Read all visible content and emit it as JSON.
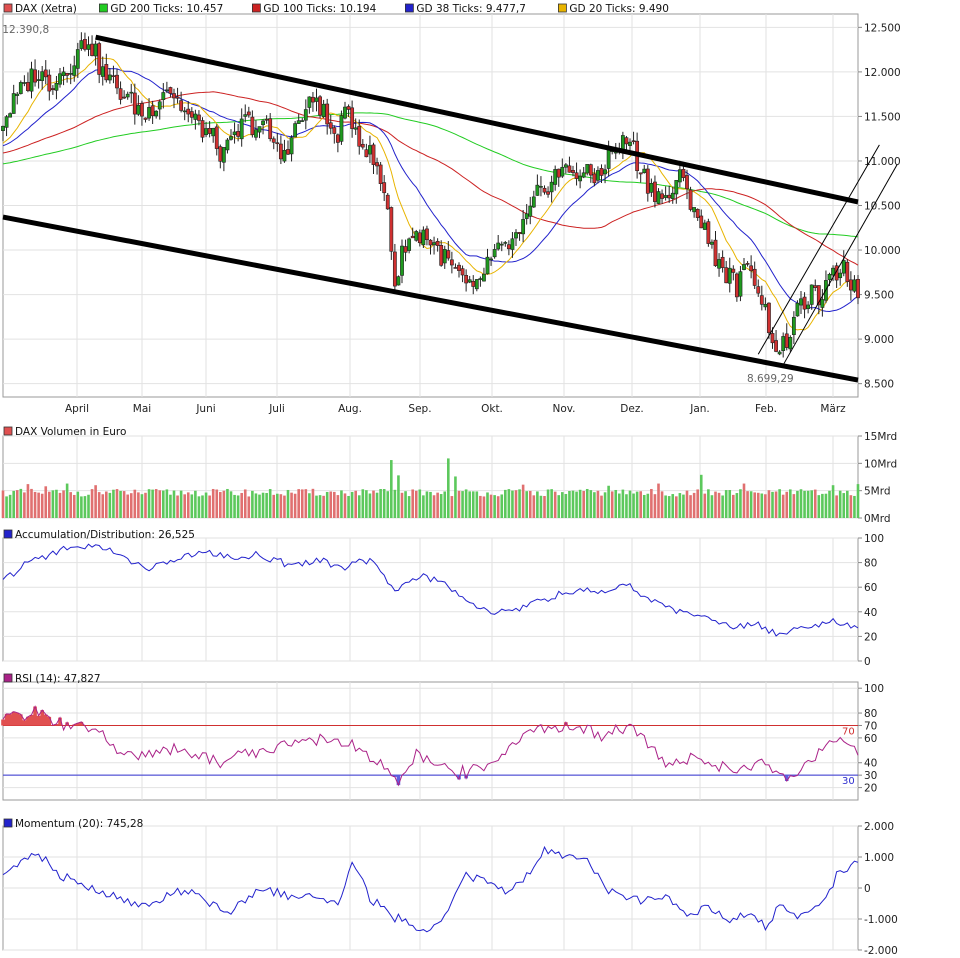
{
  "chart_data": [
    {
      "type": "candlestick",
      "legend": [
        {
          "name": "DAX (Xetra)",
          "color": "#e05050"
        },
        {
          "name": "GD 200 Ticks: 10.457",
          "color": "#22cc22"
        },
        {
          "name": "GD 100 Ticks: 10.194",
          "color": "#cc2222"
        },
        {
          "name": "GD 38 Ticks: 9.477,7",
          "color": "#2222cc"
        },
        {
          "name": "GD 20 Ticks: 9.490",
          "color": "#e8b400"
        }
      ],
      "months": [
        "April",
        "Mai",
        "Juni",
        "Juli",
        "Aug.",
        "Sep.",
        "Okt.",
        "Nov.",
        "Dez.",
        "Jan.",
        "Feb.",
        "März"
      ],
      "ylim": [
        8350,
        12650
      ],
      "y_ticks": [
        8500,
        9000,
        9500,
        10000,
        10500,
        11000,
        11500,
        12000,
        12500
      ],
      "y_tick_labels": [
        "8.500",
        "9.000",
        "9.500",
        "10.000",
        "10.500",
        "11.000",
        "11.500",
        "12.000",
        "12.500"
      ],
      "annotations": [
        {
          "text": "12.390,8",
          "x": 6,
          "y": 12390.8
        },
        {
          "text": "8.699,29",
          "x": 215,
          "y": 8699.29
        }
      ],
      "x_range": [
        0,
        240
      ],
      "close_anchors": [
        [
          0,
          11450
        ],
        [
          4,
          11720
        ],
        [
          9,
          12000
        ],
        [
          13,
          11880
        ],
        [
          18,
          12050
        ],
        [
          24,
          12390
        ],
        [
          28,
          11980
        ],
        [
          35,
          11700
        ],
        [
          40,
          11500
        ],
        [
          46,
          11850
        ],
        [
          52,
          11500
        ],
        [
          58,
          11300
        ],
        [
          62,
          11050
        ],
        [
          68,
          11450
        ],
        [
          74,
          11350
        ],
        [
          78,
          11050
        ],
        [
          84,
          11500
        ],
        [
          88,
          11720
        ],
        [
          93,
          11250
        ],
        [
          97,
          11550
        ],
        [
          101,
          11200
        ],
        [
          104,
          11000
        ],
        [
          108,
          10500
        ],
        [
          110,
          9600
        ],
        [
          113,
          10100
        ],
        [
          118,
          10200
        ],
        [
          123,
          9950
        ],
        [
          128,
          9700
        ],
        [
          132,
          9500
        ],
        [
          136,
          9850
        ],
        [
          140,
          10000
        ],
        [
          145,
          10150
        ],
        [
          150,
          10600
        ],
        [
          155,
          10850
        ],
        [
          160,
          10900
        ],
        [
          166,
          10800
        ],
        [
          171,
          11100
        ],
        [
          176,
          11250
        ],
        [
          178,
          11000
        ],
        [
          181,
          10750
        ],
        [
          186,
          10550
        ],
        [
          190,
          10800
        ],
        [
          194,
          10500
        ],
        [
          198,
          10100
        ],
        [
          202,
          9800
        ],
        [
          206,
          9600
        ],
        [
          210,
          9850
        ],
        [
          214,
          9300
        ],
        [
          218,
          8800
        ],
        [
          222,
          9200
        ],
        [
          226,
          9500
        ],
        [
          230,
          9450
        ],
        [
          233,
          9700
        ],
        [
          236,
          9850
        ],
        [
          239,
          9550
        ]
      ],
      "trendlines": [
        {
          "from": [
            26,
            12390
          ],
          "to": [
            240,
            10540
          ]
        },
        {
          "from": [
            0,
            10370
          ],
          "to": [
            240,
            8540
          ]
        },
        {
          "from": [
            212,
            8830
          ],
          "to": [
            246,
            11180
          ]
        },
        {
          "from": [
            219,
            8710
          ],
          "to": [
            251,
            10960
          ]
        }
      ]
    },
    {
      "type": "bar",
      "legend": [
        {
          "name": "DAX Volumen in Euro",
          "color": "#e05050"
        }
      ],
      "ylim": [
        0,
        15
      ],
      "y_ticks": [
        0,
        5,
        10,
        15
      ],
      "y_tick_labels": [
        "0Mrd",
        "5Mrd",
        "10Mrd",
        "15Mrd"
      ],
      "base_level": 4.5,
      "spikes": [
        [
          7,
          6.2
        ],
        [
          12,
          5.8
        ],
        [
          18,
          6.3
        ],
        [
          26,
          6.0
        ],
        [
          109,
          10.6
        ],
        [
          111,
          7.8
        ],
        [
          125,
          10.9
        ],
        [
          127,
          7.6
        ],
        [
          146,
          6.1
        ],
        [
          170,
          5.9
        ],
        [
          184,
          6.3
        ],
        [
          196,
          7.9
        ],
        [
          208,
          6.3
        ],
        [
          233,
          6.0
        ],
        [
          240,
          6.2
        ]
      ]
    },
    {
      "type": "line",
      "legend": [
        {
          "name": "Accumulation/Distribution: 26,525",
          "color": "#2222cc"
        }
      ],
      "ylim": [
        0,
        100
      ],
      "y_ticks": [
        0,
        20,
        40,
        60,
        80,
        100
      ],
      "y_tick_labels": [
        "0",
        "20",
        "40",
        "60",
        "80",
        "100"
      ],
      "anchors": [
        [
          0,
          65
        ],
        [
          8,
          82
        ],
        [
          16,
          90
        ],
        [
          24,
          94
        ],
        [
          32,
          88
        ],
        [
          40,
          75
        ],
        [
          48,
          82
        ],
        [
          56,
          89
        ],
        [
          64,
          84
        ],
        [
          72,
          86
        ],
        [
          80,
          79
        ],
        [
          88,
          82
        ],
        [
          96,
          77
        ],
        [
          104,
          82
        ],
        [
          110,
          58
        ],
        [
          118,
          70
        ],
        [
          124,
          63
        ],
        [
          130,
          50
        ],
        [
          136,
          40
        ],
        [
          144,
          42
        ],
        [
          152,
          50
        ],
        [
          160,
          56
        ],
        [
          168,
          56
        ],
        [
          176,
          62
        ],
        [
          180,
          52
        ],
        [
          188,
          42
        ],
        [
          196,
          36
        ],
        [
          204,
          28
        ],
        [
          212,
          30
        ],
        [
          218,
          22
        ],
        [
          222,
          26
        ],
        [
          226,
          28
        ],
        [
          232,
          32
        ],
        [
          240,
          26
        ]
      ]
    },
    {
      "type": "line",
      "legend": [
        {
          "name": "RSI (14): 47,827",
          "color": "#aa2288"
        }
      ],
      "ylim": [
        10,
        105
      ],
      "y_ticks": [
        20,
        30,
        40,
        60,
        70,
        80,
        100
      ],
      "y_tick_labels": [
        "20",
        "30",
        "40",
        "60",
        "70",
        "80",
        "100"
      ],
      "reference_lines": [
        {
          "value": 70,
          "label": "70",
          "color": "#d03030"
        },
        {
          "value": 30,
          "label": "30",
          "color": "#3030d0"
        }
      ],
      "anchors": [
        [
          0,
          77
        ],
        [
          6,
          79
        ],
        [
          10,
          81
        ],
        [
          14,
          72
        ],
        [
          20,
          70
        ],
        [
          26,
          66
        ],
        [
          32,
          50
        ],
        [
          40,
          44
        ],
        [
          48,
          52
        ],
        [
          56,
          44
        ],
        [
          62,
          40
        ],
        [
          68,
          50
        ],
        [
          74,
          48
        ],
        [
          80,
          56
        ],
        [
          86,
          60
        ],
        [
          94,
          58
        ],
        [
          100,
          52
        ],
        [
          104,
          42
        ],
        [
          109,
          32
        ],
        [
          111,
          22
        ],
        [
          116,
          46
        ],
        [
          122,
          38
        ],
        [
          128,
          32
        ],
        [
          134,
          35
        ],
        [
          140,
          48
        ],
        [
          146,
          60
        ],
        [
          150,
          71
        ],
        [
          156,
          66
        ],
        [
          162,
          70
        ],
        [
          168,
          62
        ],
        [
          176,
          70
        ],
        [
          180,
          58
        ],
        [
          186,
          38
        ],
        [
          192,
          44
        ],
        [
          198,
          38
        ],
        [
          204,
          38
        ],
        [
          208,
          34
        ],
        [
          212,
          42
        ],
        [
          218,
          30
        ],
        [
          222,
          26
        ],
        [
          226,
          42
        ],
        [
          232,
          56
        ],
        [
          236,
          58
        ],
        [
          240,
          48
        ]
      ]
    },
    {
      "type": "line",
      "legend": [
        {
          "name": "Momentum (20): 745,28",
          "color": "#2222cc"
        }
      ],
      "ylim": [
        -2000,
        2000
      ],
      "y_ticks": [
        -2000,
        -1000,
        0,
        1000,
        2000
      ],
      "y_tick_labels": [
        "-2.000",
        "-1.000",
        "0",
        "1.000",
        "2.000"
      ],
      "anchors": [
        [
          0,
          500
        ],
        [
          4,
          750
        ],
        [
          8,
          1100
        ],
        [
          12,
          900
        ],
        [
          16,
          400
        ],
        [
          22,
          100
        ],
        [
          28,
          -200
        ],
        [
          34,
          -400
        ],
        [
          40,
          -600
        ],
        [
          46,
          -200
        ],
        [
          52,
          -100
        ],
        [
          58,
          -500
        ],
        [
          64,
          -800
        ],
        [
          70,
          -200
        ],
        [
          76,
          -100
        ],
        [
          82,
          -300
        ],
        [
          88,
          -200
        ],
        [
          94,
          -500
        ],
        [
          98,
          900
        ],
        [
          103,
          -300
        ],
        [
          108,
          -800
        ],
        [
          114,
          -1200
        ],
        [
          118,
          -1500
        ],
        [
          124,
          -900
        ],
        [
          130,
          400
        ],
        [
          136,
          200
        ],
        [
          142,
          -100
        ],
        [
          148,
          500
        ],
        [
          152,
          1300
        ],
        [
          158,
          1100
        ],
        [
          164,
          900
        ],
        [
          170,
          -100
        ],
        [
          176,
          -300
        ],
        [
          180,
          -400
        ],
        [
          186,
          -300
        ],
        [
          192,
          -900
        ],
        [
          198,
          -600
        ],
        [
          204,
          -1100
        ],
        [
          210,
          -800
        ],
        [
          214,
          -1300
        ],
        [
          218,
          -600
        ],
        [
          224,
          -900
        ],
        [
          230,
          -500
        ],
        [
          234,
          400
        ],
        [
          238,
          800
        ],
        [
          240,
          745
        ]
      ]
    }
  ]
}
